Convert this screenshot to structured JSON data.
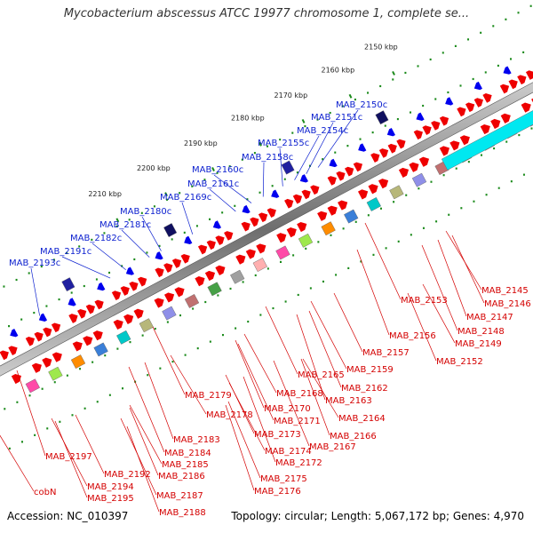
{
  "title": "Mycobacterium abscessus ATCC 19977 chromosome 1, complete se...",
  "accession": "Accession: NC_010397",
  "summary": "Topology: circular; Length: 5,067,172 bp; Genes: 4,970",
  "colors": {
    "forward_gene": "#ee0000",
    "reverse_gene": "#0000ee",
    "backbone": "#8a8a8a",
    "label_forward": "#d40000",
    "label_reverse": "#0b1fcf",
    "tick": "#1a8a1a"
  },
  "ticks": [
    "2150 kbp",
    "2160 kbp",
    "2170 kbp",
    "2180 kbp",
    "2190 kbp",
    "2200 kbp",
    "2210 kbp"
  ],
  "reverse_labels": [
    "MAB_2150c",
    "MAB_2151c",
    "MAB_2154c",
    "MAB_2155c",
    "MAB_2158c",
    "MAB_2160c",
    "MAB_2161c",
    "MAB_2169c",
    "MAB_2180c",
    "MAB_2181c",
    "MAB_2182c",
    "MAB_2191c",
    "MAB_2193c"
  ],
  "forward_labels": [
    "MAB_2145",
    "MAB_2146",
    "MAB_2147",
    "MAB_2148",
    "MAB_2149",
    "MAB_2152",
    "MAB_2153",
    "MAB_2156",
    "MAB_2157",
    "MAB_2159",
    "MAB_2162",
    "MAB_2163",
    "MAB_2164",
    "MAB_2165",
    "MAB_2166",
    "MAB_2167",
    "MAB_2168",
    "MAB_2170",
    "MAB_2171",
    "MAB_2172",
    "MAB_2173",
    "MAB_2174",
    "MAB_2175",
    "MAB_2176",
    "MAB_2178",
    "MAB_2179",
    "MAB_2183",
    "MAB_2184",
    "MAB_2185",
    "MAB_2186",
    "MAB_2187",
    "MAB_2188",
    "MAB_2192",
    "MAB_2194",
    "MAB_2195",
    "MAB_2197",
    "cobN"
  ]
}
